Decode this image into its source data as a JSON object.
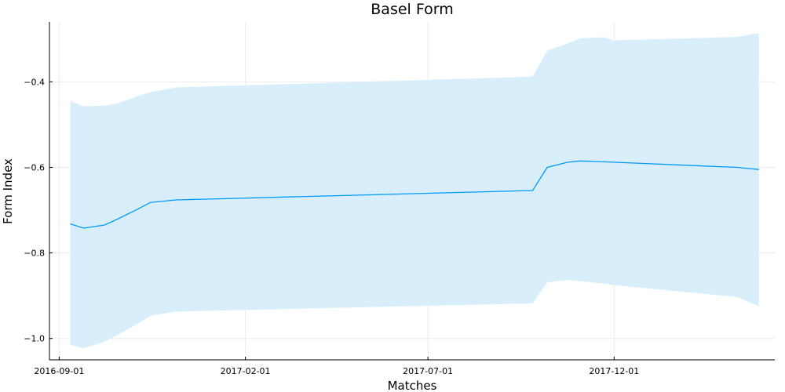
{
  "chart_data": {
    "type": "line",
    "title": "Basel Form",
    "xlabel": "Matches",
    "ylabel": "Form Index",
    "x_ticks": [
      "2016-09-01",
      "2017-02-01",
      "2017-07-01",
      "2017-12-01"
    ],
    "y_ticks": [
      "-0.4",
      "-0.6",
      "-0.8",
      "-1.0"
    ],
    "xlim": [
      "2016-08-24",
      "2018-04-12"
    ],
    "ylim": [
      -1.05,
      -0.26
    ],
    "grid": true,
    "legend": "none",
    "colors": {
      "line": "#009af9",
      "band": "#d8eefb",
      "grid": "#ececec",
      "axis": "#000000"
    },
    "series": [
      {
        "x": [
          "2016-09-10",
          "2016-09-21",
          "2016-10-08",
          "2016-10-18",
          "2016-11-05",
          "2016-11-15",
          "2016-12-06",
          "2017-09-25",
          "2017-10-07",
          "2017-10-24",
          "2017-11-03",
          "2017-11-23",
          "2017-11-30",
          "2018-03-12",
          "2018-03-30"
        ],
        "y": [
          -0.732,
          -0.742,
          -0.735,
          -0.722,
          -0.697,
          -0.682,
          -0.676,
          -0.654,
          -0.6,
          -0.588,
          -0.585,
          -0.587,
          -0.588,
          -0.6,
          -0.605
        ],
        "lower": [
          -1.015,
          -1.023,
          -1.008,
          -0.993,
          -0.965,
          -0.947,
          -0.937,
          -0.918,
          -0.869,
          -0.863,
          -0.866,
          -0.872,
          -0.875,
          -0.903,
          -0.925
        ],
        "upper": [
          -0.445,
          -0.457,
          -0.456,
          -0.451,
          -0.433,
          -0.424,
          -0.413,
          -0.388,
          -0.327,
          -0.31,
          -0.298,
          -0.296,
          -0.303,
          -0.295,
          -0.286
        ]
      }
    ]
  }
}
